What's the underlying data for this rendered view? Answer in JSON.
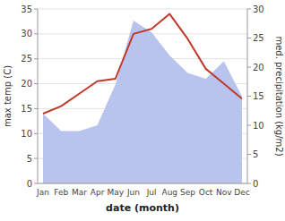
{
  "chart_data": {
    "type": "line",
    "categories": [
      "Jan",
      "Feb",
      "Mar",
      "Apr",
      "May",
      "Jun",
      "Jul",
      "Aug",
      "Sep",
      "Oct",
      "Nov",
      "Dec"
    ],
    "series": [
      {
        "type": "area",
        "axis": "y2",
        "color": "#b8c4ee",
        "values": [
          12,
          9,
          9,
          10,
          17,
          28,
          26,
          22,
          19,
          18,
          21,
          15
        ]
      },
      {
        "type": "line",
        "color": "#c0392b",
        "values": [
          14,
          15.5,
          18,
          20.5,
          21,
          30,
          31,
          34,
          29,
          23,
          20,
          17
        ]
      }
    ],
    "xlabel": "date (month)",
    "ylabel": "max temp (C)",
    "y2label": "med. precipitation (kg/m2)",
    "ylim": [
      0,
      35
    ],
    "yticks": [
      0,
      5,
      10,
      15,
      20,
      25,
      30,
      35
    ],
    "y2lim": [
      0,
      30
    ],
    "y2ticks": [
      0,
      5,
      10,
      15,
      20,
      25,
      30
    ],
    "grid": true
  }
}
